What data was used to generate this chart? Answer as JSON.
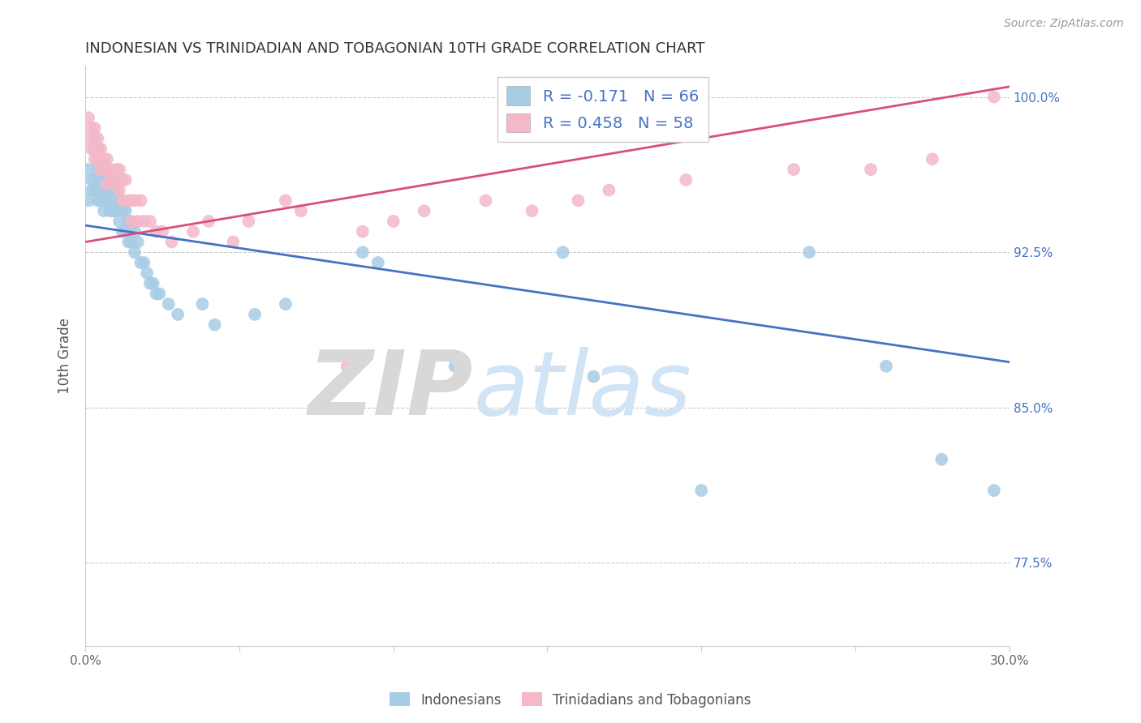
{
  "title": "INDONESIAN VS TRINIDADIAN AND TOBAGONIAN 10TH GRADE CORRELATION CHART",
  "source": "Source: ZipAtlas.com",
  "ylabel": "10th Grade",
  "xlim": [
    0.0,
    0.3
  ],
  "ylim": [
    0.735,
    1.015
  ],
  "xticks": [
    0.0,
    0.05,
    0.1,
    0.15,
    0.2,
    0.25,
    0.3
  ],
  "xticklabels": [
    "0.0%",
    "",
    "",
    "",
    "",
    "",
    "30.0%"
  ],
  "yticks": [
    0.775,
    0.85,
    0.925,
    1.0
  ],
  "yticklabels": [
    "77.5%",
    "85.0%",
    "92.5%",
    "100.0%"
  ],
  "blue_color": "#a8cce4",
  "pink_color": "#f4b8c8",
  "blue_line_color": "#4472c4",
  "pink_line_color": "#d94f7a",
  "legend_text_color": "#4472c4",
  "watermark": "ZIPatlas",
  "watermark_color": "#d0e4f5",
  "R_blue": -0.171,
  "N_blue": 66,
  "R_pink": 0.458,
  "N_pink": 58,
  "blue_line_x": [
    0.0,
    0.3
  ],
  "blue_line_y": [
    0.938,
    0.872
  ],
  "pink_line_x": [
    0.0,
    0.3
  ],
  "pink_line_y": [
    0.93,
    1.005
  ],
  "blue_points_x": [
    0.001,
    0.001,
    0.002,
    0.002,
    0.003,
    0.003,
    0.003,
    0.003,
    0.004,
    0.004,
    0.004,
    0.004,
    0.005,
    0.005,
    0.005,
    0.006,
    0.006,
    0.006,
    0.006,
    0.007,
    0.007,
    0.007,
    0.007,
    0.008,
    0.008,
    0.009,
    0.009,
    0.009,
    0.01,
    0.01,
    0.011,
    0.011,
    0.012,
    0.012,
    0.013,
    0.013,
    0.014,
    0.014,
    0.015,
    0.015,
    0.016,
    0.016,
    0.017,
    0.018,
    0.019,
    0.02,
    0.021,
    0.022,
    0.023,
    0.024,
    0.027,
    0.03,
    0.038,
    0.042,
    0.055,
    0.065,
    0.09,
    0.095,
    0.12,
    0.155,
    0.165,
    0.2,
    0.235,
    0.26,
    0.278,
    0.295
  ],
  "blue_points_y": [
    0.965,
    0.95,
    0.96,
    0.955,
    0.98,
    0.975,
    0.96,
    0.955,
    0.975,
    0.965,
    0.955,
    0.95,
    0.965,
    0.96,
    0.95,
    0.968,
    0.96,
    0.95,
    0.945,
    0.965,
    0.96,
    0.955,
    0.95,
    0.955,
    0.945,
    0.96,
    0.95,
    0.945,
    0.955,
    0.945,
    0.95,
    0.94,
    0.945,
    0.935,
    0.945,
    0.935,
    0.94,
    0.93,
    0.938,
    0.93,
    0.935,
    0.925,
    0.93,
    0.92,
    0.92,
    0.915,
    0.91,
    0.91,
    0.905,
    0.905,
    0.9,
    0.895,
    0.9,
    0.89,
    0.895,
    0.9,
    0.925,
    0.92,
    0.87,
    0.925,
    0.865,
    0.81,
    0.925,
    0.87,
    0.825,
    0.81
  ],
  "pink_points_x": [
    0.001,
    0.001,
    0.002,
    0.002,
    0.003,
    0.003,
    0.003,
    0.004,
    0.004,
    0.004,
    0.005,
    0.005,
    0.005,
    0.006,
    0.006,
    0.007,
    0.007,
    0.007,
    0.008,
    0.008,
    0.009,
    0.01,
    0.01,
    0.011,
    0.011,
    0.012,
    0.012,
    0.013,
    0.014,
    0.015,
    0.015,
    0.016,
    0.017,
    0.018,
    0.019,
    0.021,
    0.023,
    0.025,
    0.028,
    0.035,
    0.04,
    0.048,
    0.053,
    0.065,
    0.07,
    0.085,
    0.09,
    0.1,
    0.11,
    0.13,
    0.145,
    0.16,
    0.17,
    0.195,
    0.23,
    0.255,
    0.275,
    0.295
  ],
  "pink_points_y": [
    0.99,
    0.98,
    0.985,
    0.975,
    0.985,
    0.975,
    0.97,
    0.98,
    0.975,
    0.97,
    0.975,
    0.97,
    0.965,
    0.97,
    0.965,
    0.97,
    0.965,
    0.958,
    0.965,
    0.96,
    0.96,
    0.965,
    0.958,
    0.965,
    0.955,
    0.96,
    0.95,
    0.96,
    0.95,
    0.95,
    0.94,
    0.95,
    0.94,
    0.95,
    0.94,
    0.94,
    0.935,
    0.935,
    0.93,
    0.935,
    0.94,
    0.93,
    0.94,
    0.95,
    0.945,
    0.87,
    0.935,
    0.94,
    0.945,
    0.95,
    0.945,
    0.95,
    0.955,
    0.96,
    0.965,
    0.965,
    0.97,
    1.0
  ]
}
